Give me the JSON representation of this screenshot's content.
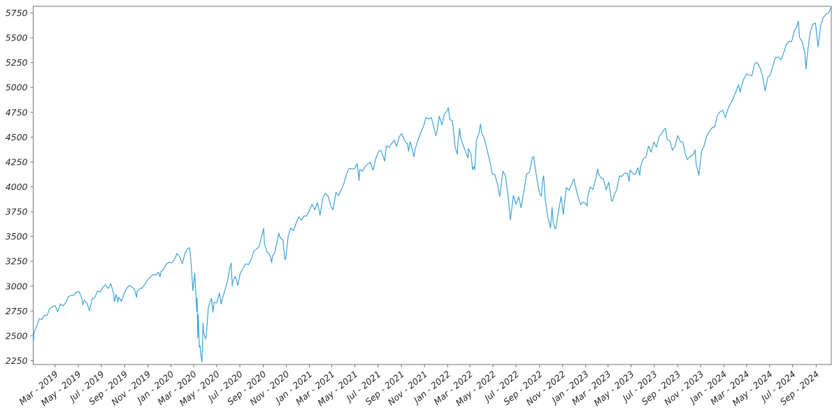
{
  "chart_data": {
    "type": "line",
    "title": "",
    "line_color": "#3da2da",
    "axis_color": "#737373",
    "tick_label_color": "#262626",
    "grid": false,
    "legend": "none",
    "ylim": [
      2211,
      5817
    ],
    "y_ticks": [
      2250,
      2500,
      2750,
      3000,
      3250,
      3500,
      3750,
      4000,
      4250,
      4500,
      4750,
      5000,
      5250,
      5500,
      5750
    ],
    "x_tick_labels": [
      "Mar - 2019",
      "May - 2019",
      "Jul - 2019",
      "Sep - 2019",
      "Nov - 2019",
      "Jan - 2020",
      "Mar - 2020",
      "May - 2020",
      "Jul - 2020",
      "Sep - 2020",
      "Nov - 2020",
      "Jan - 2021",
      "Mar - 2021",
      "May - 2021",
      "Jul - 2021",
      "Sep - 2021",
      "Nov - 2021",
      "Jan - 2022",
      "Mar - 2022",
      "May - 2022",
      "Jul - 2022",
      "Sep - 2022",
      "Nov - 2022",
      "Jan - 2023",
      "Mar - 2023",
      "May - 2023",
      "Jul - 2023",
      "Sep - 2023",
      "Nov - 2023",
      "Jan - 2024",
      "Mar - 2024",
      "May - 2024",
      "Jul - 2024",
      "Sep - 2024"
    ],
    "points": [
      [
        "2019-01-02",
        2510
      ],
      [
        "2019-01-03",
        2448
      ],
      [
        "2019-01-04",
        2532
      ],
      [
        "2019-01-11",
        2596
      ],
      [
        "2019-01-18",
        2671
      ],
      [
        "2019-01-25",
        2665
      ],
      [
        "2019-02-01",
        2707
      ],
      [
        "2019-02-08",
        2708
      ],
      [
        "2019-02-15",
        2776
      ],
      [
        "2019-02-22",
        2793
      ],
      [
        "2019-03-01",
        2803
      ],
      [
        "2019-03-08",
        2743
      ],
      [
        "2019-03-15",
        2822
      ],
      [
        "2019-03-22",
        2801
      ],
      [
        "2019-03-29",
        2834
      ],
      [
        "2019-04-05",
        2893
      ],
      [
        "2019-04-12",
        2907
      ],
      [
        "2019-04-18",
        2905
      ],
      [
        "2019-04-26",
        2940
      ],
      [
        "2019-05-03",
        2946
      ],
      [
        "2019-05-10",
        2881
      ],
      [
        "2019-05-13",
        2812
      ],
      [
        "2019-05-17",
        2860
      ],
      [
        "2019-05-24",
        2826
      ],
      [
        "2019-05-31",
        2752
      ],
      [
        "2019-06-07",
        2873
      ],
      [
        "2019-06-14",
        2887
      ],
      [
        "2019-06-21",
        2950
      ],
      [
        "2019-06-28",
        2942
      ],
      [
        "2019-07-05",
        2990
      ],
      [
        "2019-07-12",
        3014
      ],
      [
        "2019-07-19",
        2977
      ],
      [
        "2019-07-26",
        3026
      ],
      [
        "2019-08-02",
        2932
      ],
      [
        "2019-08-05",
        2845
      ],
      [
        "2019-08-09",
        2919
      ],
      [
        "2019-08-14",
        2841
      ],
      [
        "2019-08-16",
        2889
      ],
      [
        "2019-08-23",
        2847
      ],
      [
        "2019-08-30",
        2926
      ],
      [
        "2019-09-06",
        2979
      ],
      [
        "2019-09-13",
        3007
      ],
      [
        "2019-09-20",
        2992
      ],
      [
        "2019-09-27",
        2962
      ],
      [
        "2019-10-02",
        2888
      ],
      [
        "2019-10-04",
        2952
      ],
      [
        "2019-10-11",
        2970
      ],
      [
        "2019-10-18",
        2986
      ],
      [
        "2019-10-25",
        3023
      ],
      [
        "2019-11-01",
        3067
      ],
      [
        "2019-11-08",
        3093
      ],
      [
        "2019-11-15",
        3120
      ],
      [
        "2019-11-22",
        3110
      ],
      [
        "2019-11-29",
        3141
      ],
      [
        "2019-12-03",
        3093
      ],
      [
        "2019-12-06",
        3146
      ],
      [
        "2019-12-13",
        3169
      ],
      [
        "2019-12-20",
        3221
      ],
      [
        "2019-12-27",
        3240
      ],
      [
        "2020-01-03",
        3235
      ],
      [
        "2020-01-10",
        3265
      ],
      [
        "2020-01-17",
        3330
      ],
      [
        "2020-01-24",
        3295
      ],
      [
        "2020-01-31",
        3226
      ],
      [
        "2020-02-07",
        3328
      ],
      [
        "2020-02-14",
        3380
      ],
      [
        "2020-02-19",
        3386
      ],
      [
        "2020-02-21",
        3338
      ],
      [
        "2020-02-25",
        3128
      ],
      [
        "2020-02-28",
        2954
      ],
      [
        "2020-03-04",
        3130
      ],
      [
        "2020-03-06",
        2972
      ],
      [
        "2020-03-09",
        2747
      ],
      [
        "2020-03-10",
        2882
      ],
      [
        "2020-03-12",
        2481
      ],
      [
        "2020-03-13",
        2711
      ],
      [
        "2020-03-16",
        2386
      ],
      [
        "2020-03-18",
        2398
      ],
      [
        "2020-03-20",
        2305
      ],
      [
        "2020-03-23",
        2237
      ],
      [
        "2020-03-26",
        2630
      ],
      [
        "2020-03-27",
        2541
      ],
      [
        "2020-04-01",
        2471
      ],
      [
        "2020-04-03",
        2489
      ],
      [
        "2020-04-09",
        2790
      ],
      [
        "2020-04-17",
        2875
      ],
      [
        "2020-04-21",
        2737
      ],
      [
        "2020-04-24",
        2837
      ],
      [
        "2020-05-01",
        2831
      ],
      [
        "2020-05-08",
        2930
      ],
      [
        "2020-05-13",
        2820
      ],
      [
        "2020-05-15",
        2864
      ],
      [
        "2020-05-22",
        2955
      ],
      [
        "2020-05-29",
        3044
      ],
      [
        "2020-06-05",
        3194
      ],
      [
        "2020-06-08",
        3232
      ],
      [
        "2020-06-11",
        3002
      ],
      [
        "2020-06-12",
        3041
      ],
      [
        "2020-06-19",
        3098
      ],
      [
        "2020-06-26",
        3009
      ],
      [
        "2020-07-02",
        3130
      ],
      [
        "2020-07-10",
        3185
      ],
      [
        "2020-07-17",
        3225
      ],
      [
        "2020-07-24",
        3216
      ],
      [
        "2020-07-31",
        3271
      ],
      [
        "2020-08-07",
        3351
      ],
      [
        "2020-08-14",
        3373
      ],
      [
        "2020-08-21",
        3397
      ],
      [
        "2020-08-28",
        3508
      ],
      [
        "2020-09-02",
        3581
      ],
      [
        "2020-09-04",
        3427
      ],
      [
        "2020-09-11",
        3341
      ],
      [
        "2020-09-18",
        3319
      ],
      [
        "2020-09-23",
        3237
      ],
      [
        "2020-09-25",
        3298
      ],
      [
        "2020-10-02",
        3348
      ],
      [
        "2020-10-09",
        3477
      ],
      [
        "2020-10-12",
        3534
      ],
      [
        "2020-10-16",
        3484
      ],
      [
        "2020-10-23",
        3465
      ],
      [
        "2020-10-28",
        3271
      ],
      [
        "2020-10-30",
        3270
      ],
      [
        "2020-11-06",
        3509
      ],
      [
        "2020-11-13",
        3585
      ],
      [
        "2020-11-20",
        3558
      ],
      [
        "2020-11-27",
        3638
      ],
      [
        "2020-12-04",
        3699
      ],
      [
        "2020-12-11",
        3663
      ],
      [
        "2020-12-18",
        3709
      ],
      [
        "2020-12-24",
        3703
      ],
      [
        "2020-12-31",
        3756
      ],
      [
        "2021-01-08",
        3825
      ],
      [
        "2021-01-15",
        3768
      ],
      [
        "2021-01-22",
        3841
      ],
      [
        "2021-01-29",
        3714
      ],
      [
        "2021-02-05",
        3887
      ],
      [
        "2021-02-12",
        3935
      ],
      [
        "2021-02-19",
        3907
      ],
      [
        "2021-02-26",
        3811
      ],
      [
        "2021-03-04",
        3768
      ],
      [
        "2021-03-12",
        3943
      ],
      [
        "2021-03-19",
        3913
      ],
      [
        "2021-03-26",
        3975
      ],
      [
        "2021-04-01",
        4020
      ],
      [
        "2021-04-09",
        4129
      ],
      [
        "2021-04-16",
        4185
      ],
      [
        "2021-04-23",
        4180
      ],
      [
        "2021-04-30",
        4181
      ],
      [
        "2021-05-07",
        4233
      ],
      [
        "2021-05-12",
        4063
      ],
      [
        "2021-05-14",
        4174
      ],
      [
        "2021-05-21",
        4156
      ],
      [
        "2021-05-28",
        4204
      ],
      [
        "2021-06-04",
        4230
      ],
      [
        "2021-06-11",
        4247
      ],
      [
        "2021-06-18",
        4166
      ],
      [
        "2021-06-25",
        4281
      ],
      [
        "2021-07-02",
        4352
      ],
      [
        "2021-07-09",
        4370
      ],
      [
        "2021-07-19",
        4258
      ],
      [
        "2021-07-23",
        4412
      ],
      [
        "2021-07-30",
        4395
      ],
      [
        "2021-08-06",
        4437
      ],
      [
        "2021-08-13",
        4468
      ],
      [
        "2021-08-19",
        4406
      ],
      [
        "2021-08-27",
        4509
      ],
      [
        "2021-09-02",
        4537
      ],
      [
        "2021-09-10",
        4459
      ],
      [
        "2021-09-17",
        4433
      ],
      [
        "2021-09-20",
        4358
      ],
      [
        "2021-09-24",
        4455
      ],
      [
        "2021-10-01",
        4357
      ],
      [
        "2021-10-04",
        4300
      ],
      [
        "2021-10-08",
        4391
      ],
      [
        "2021-10-15",
        4471
      ],
      [
        "2021-10-22",
        4545
      ],
      [
        "2021-10-29",
        4605
      ],
      [
        "2021-11-05",
        4698
      ],
      [
        "2021-11-12",
        4683
      ],
      [
        "2021-11-19",
        4698
      ],
      [
        "2021-11-26",
        4595
      ],
      [
        "2021-12-01",
        4513
      ],
      [
        "2021-12-03",
        4538
      ],
      [
        "2021-12-10",
        4712
      ],
      [
        "2021-12-17",
        4621
      ],
      [
        "2021-12-23",
        4726
      ],
      [
        "2021-12-31",
        4766
      ],
      [
        "2022-01-03",
        4796
      ],
      [
        "2022-01-07",
        4677
      ],
      [
        "2022-01-14",
        4663
      ],
      [
        "2022-01-21",
        4398
      ],
      [
        "2022-01-27",
        4327
      ],
      [
        "2022-01-28",
        4432
      ],
      [
        "2022-02-02",
        4589
      ],
      [
        "2022-02-04",
        4501
      ],
      [
        "2022-02-11",
        4419
      ],
      [
        "2022-02-18",
        4349
      ],
      [
        "2022-02-24",
        4289
      ],
      [
        "2022-02-25",
        4385
      ],
      [
        "2022-03-04",
        4329
      ],
      [
        "2022-03-08",
        4171
      ],
      [
        "2022-03-11",
        4204
      ],
      [
        "2022-03-14",
        4173
      ],
      [
        "2022-03-18",
        4463
      ],
      [
        "2022-03-25",
        4543
      ],
      [
        "2022-03-29",
        4631
      ],
      [
        "2022-04-01",
        4546
      ],
      [
        "2022-04-08",
        4488
      ],
      [
        "2022-04-14",
        4393
      ],
      [
        "2022-04-22",
        4272
      ],
      [
        "2022-04-29",
        4132
      ],
      [
        "2022-05-06",
        4123
      ],
      [
        "2022-05-13",
        4024
      ],
      [
        "2022-05-19",
        3901
      ],
      [
        "2022-05-27",
        4158
      ],
      [
        "2022-06-03",
        4109
      ],
      [
        "2022-06-10",
        3901
      ],
      [
        "2022-06-16",
        3667
      ],
      [
        "2022-06-24",
        3912
      ],
      [
        "2022-07-01",
        3825
      ],
      [
        "2022-07-08",
        3899
      ],
      [
        "2022-07-14",
        3790
      ],
      [
        "2022-07-22",
        3962
      ],
      [
        "2022-07-29",
        4130
      ],
      [
        "2022-08-05",
        4145
      ],
      [
        "2022-08-12",
        4280
      ],
      [
        "2022-08-16",
        4305
      ],
      [
        "2022-08-19",
        4228
      ],
      [
        "2022-08-26",
        4058
      ],
      [
        "2022-09-02",
        3924
      ],
      [
        "2022-09-06",
        3908
      ],
      [
        "2022-09-09",
        4067
      ],
      [
        "2022-09-12",
        4110
      ],
      [
        "2022-09-16",
        3873
      ],
      [
        "2022-09-23",
        3693
      ],
      [
        "2022-09-30",
        3586
      ],
      [
        "2022-10-04",
        3791
      ],
      [
        "2022-10-07",
        3640
      ],
      [
        "2022-10-12",
        3577
      ],
      [
        "2022-10-14",
        3583
      ],
      [
        "2022-10-21",
        3753
      ],
      [
        "2022-10-28",
        3901
      ],
      [
        "2022-11-03",
        3720
      ],
      [
        "2022-11-04",
        3771
      ],
      [
        "2022-11-11",
        3993
      ],
      [
        "2022-11-18",
        3965
      ],
      [
        "2022-11-25",
        4026
      ],
      [
        "2022-12-01",
        4080
      ],
      [
        "2022-12-09",
        3934
      ],
      [
        "2022-12-16",
        3852
      ],
      [
        "2022-12-19",
        3818
      ],
      [
        "2022-12-23",
        3845
      ],
      [
        "2022-12-30",
        3839
      ],
      [
        "2023-01-05",
        3808
      ],
      [
        "2023-01-06",
        3895
      ],
      [
        "2023-01-13",
        3999
      ],
      [
        "2023-01-20",
        3973
      ],
      [
        "2023-01-27",
        4071
      ],
      [
        "2023-02-02",
        4180
      ],
      [
        "2023-02-03",
        4136
      ],
      [
        "2023-02-10",
        4090
      ],
      [
        "2023-02-17",
        4079
      ],
      [
        "2023-02-24",
        3970
      ],
      [
        "2023-03-03",
        4046
      ],
      [
        "2023-03-10",
        3862
      ],
      [
        "2023-03-13",
        3856
      ],
      [
        "2023-03-17",
        3917
      ],
      [
        "2023-03-24",
        3971
      ],
      [
        "2023-03-31",
        4109
      ],
      [
        "2023-04-06",
        4105
      ],
      [
        "2023-04-14",
        4138
      ],
      [
        "2023-04-21",
        4134
      ],
      [
        "2023-04-26",
        4056
      ],
      [
        "2023-04-28",
        4169
      ],
      [
        "2023-05-05",
        4136
      ],
      [
        "2023-05-12",
        4124
      ],
      [
        "2023-05-19",
        4192
      ],
      [
        "2023-05-24",
        4115
      ],
      [
        "2023-05-26",
        4205
      ],
      [
        "2023-06-02",
        4282
      ],
      [
        "2023-06-09",
        4299
      ],
      [
        "2023-06-16",
        4410
      ],
      [
        "2023-06-23",
        4348
      ],
      [
        "2023-06-30",
        4450
      ],
      [
        "2023-07-07",
        4399
      ],
      [
        "2023-07-14",
        4505
      ],
      [
        "2023-07-21",
        4536
      ],
      [
        "2023-07-28",
        4582
      ],
      [
        "2023-07-31",
        4589
      ],
      [
        "2023-08-04",
        4478
      ],
      [
        "2023-08-11",
        4464
      ],
      [
        "2023-08-18",
        4370
      ],
      [
        "2023-08-25",
        4406
      ],
      [
        "2023-09-01",
        4516
      ],
      [
        "2023-09-08",
        4457
      ],
      [
        "2023-09-15",
        4450
      ],
      [
        "2023-09-22",
        4320
      ],
      [
        "2023-09-27",
        4274
      ],
      [
        "2023-09-29",
        4288
      ],
      [
        "2023-10-06",
        4309
      ],
      [
        "2023-10-13",
        4328
      ],
      [
        "2023-10-17",
        4373
      ],
      [
        "2023-10-20",
        4224
      ],
      [
        "2023-10-27",
        4117
      ],
      [
        "2023-11-03",
        4358
      ],
      [
        "2023-11-10",
        4415
      ],
      [
        "2023-11-17",
        4514
      ],
      [
        "2023-11-24",
        4559
      ],
      [
        "2023-12-01",
        4594
      ],
      [
        "2023-12-08",
        4604
      ],
      [
        "2023-12-15",
        4719
      ],
      [
        "2023-12-22",
        4755
      ],
      [
        "2023-12-29",
        4770
      ],
      [
        "2024-01-05",
        4697
      ],
      [
        "2024-01-12",
        4784
      ],
      [
        "2024-01-19",
        4840
      ],
      [
        "2024-01-26",
        4891
      ],
      [
        "2024-02-02",
        4959
      ],
      [
        "2024-02-09",
        5027
      ],
      [
        "2024-02-13",
        4953
      ],
      [
        "2024-02-16",
        5006
      ],
      [
        "2024-02-23",
        5089
      ],
      [
        "2024-03-01",
        5137
      ],
      [
        "2024-03-08",
        5124
      ],
      [
        "2024-03-15",
        5117
      ],
      [
        "2024-03-22",
        5234
      ],
      [
        "2024-03-28",
        5254
      ],
      [
        "2024-04-05",
        5204
      ],
      [
        "2024-04-12",
        5123
      ],
      [
        "2024-04-19",
        4967
      ],
      [
        "2024-04-26",
        5100
      ],
      [
        "2024-05-03",
        5128
      ],
      [
        "2024-05-10",
        5223
      ],
      [
        "2024-05-17",
        5303
      ],
      [
        "2024-05-24",
        5305
      ],
      [
        "2024-05-31",
        5278
      ],
      [
        "2024-06-07",
        5347
      ],
      [
        "2024-06-14",
        5432
      ],
      [
        "2024-06-21",
        5465
      ],
      [
        "2024-06-28",
        5460
      ],
      [
        "2024-07-05",
        5567
      ],
      [
        "2024-07-12",
        5615
      ],
      [
        "2024-07-16",
        5667
      ],
      [
        "2024-07-19",
        5505
      ],
      [
        "2024-07-26",
        5459
      ],
      [
        "2024-08-02",
        5347
      ],
      [
        "2024-08-05",
        5186
      ],
      [
        "2024-08-09",
        5344
      ],
      [
        "2024-08-16",
        5554
      ],
      [
        "2024-08-23",
        5635
      ],
      [
        "2024-08-30",
        5648
      ],
      [
        "2024-09-06",
        5408
      ],
      [
        "2024-09-13",
        5626
      ],
      [
        "2024-09-20",
        5703
      ],
      [
        "2024-09-27",
        5738
      ],
      [
        "2024-10-04",
        5751
      ],
      [
        "2024-10-11",
        5815
      ]
    ]
  }
}
